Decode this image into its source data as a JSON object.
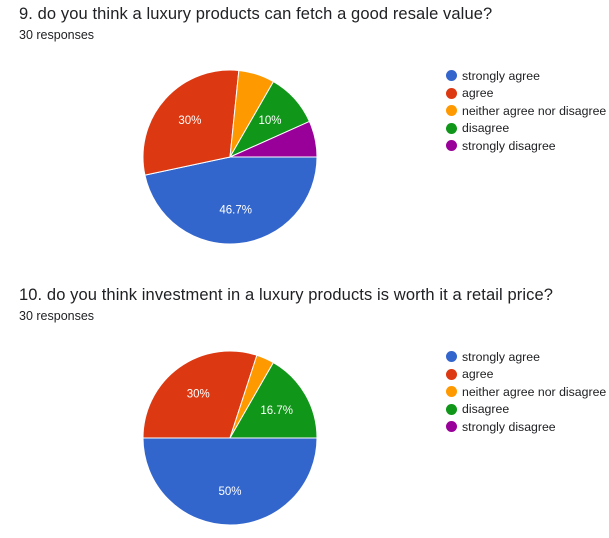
{
  "categories": [
    "strongly agree",
    "agree",
    "neither agree nor disagree",
    "disagree",
    "strongly disagree"
  ],
  "colors": [
    "#3366cc",
    "#dc3912",
    "#ff9900",
    "#109618",
    "#990099"
  ],
  "questions": [
    {
      "title": "9. do you think a luxury products can fetch a good resale value?",
      "responses": "30 responses"
    },
    {
      "title": "10. do you think investment in a luxury products is worth it a retail price?",
      "responses": "30 responses"
    }
  ],
  "chart_data": [
    {
      "type": "pie",
      "categories": [
        "strongly agree",
        "agree",
        "neither agree nor disagree",
        "disagree",
        "strongly disagree"
      ],
      "values": [
        46.7,
        30,
        6.7,
        10,
        6.7
      ],
      "data_labels": [
        "46.7%",
        "30%",
        "",
        "10%",
        ""
      ],
      "legend": "right"
    },
    {
      "type": "pie",
      "categories": [
        "strongly agree",
        "agree",
        "neither agree nor disagree",
        "disagree",
        "strongly disagree"
      ],
      "values": [
        50,
        30,
        3.3,
        16.7,
        0
      ],
      "data_labels": [
        "50%",
        "30%",
        "",
        "16.7%",
        ""
      ],
      "legend": "right"
    }
  ]
}
